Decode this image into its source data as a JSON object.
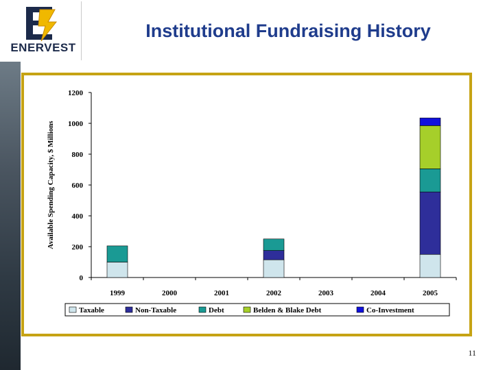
{
  "slide": {
    "title": "Institutional Fundraising History",
    "logo_text": "ENERVEST",
    "page_number": "11"
  },
  "colors": {
    "title": "#1f3c8c",
    "frame": "#c6a314",
    "taxable": "#cfe5ec",
    "non_taxable": "#2e2e9a",
    "debt": "#1a9a94",
    "belden_blake_debt": "#a6cf2a",
    "co_investment": "#1010dd"
  },
  "chart_data": {
    "type": "bar",
    "stacked": true,
    "ylabel": "Available Spending Capacity, $ Millions",
    "xlabel": "",
    "ylim": [
      0,
      1200
    ],
    "yticks": [
      0,
      200,
      400,
      600,
      800,
      1000,
      1200
    ],
    "grid": false,
    "legend_position": "bottom",
    "categories": [
      "1999",
      "2000",
      "2001",
      "2002",
      "2003",
      "2004",
      "2005"
    ],
    "series": [
      {
        "name": "Taxable",
        "color": "#cfe5ec",
        "values": [
          100,
          0,
          0,
          115,
          0,
          0,
          150
        ]
      },
      {
        "name": "Non-Taxable",
        "color": "#2e2e9a",
        "values": [
          0,
          0,
          0,
          60,
          0,
          0,
          405
        ]
      },
      {
        "name": "Debt",
        "color": "#1a9a94",
        "values": [
          105,
          0,
          0,
          75,
          0,
          0,
          150
        ]
      },
      {
        "name": "Belden & Blake Debt",
        "color": "#a6cf2a",
        "values": [
          0,
          0,
          0,
          0,
          0,
          0,
          280
        ]
      },
      {
        "name": "Co-Investment",
        "color": "#1010dd",
        "values": [
          0,
          0,
          0,
          0,
          0,
          0,
          50
        ]
      }
    ]
  }
}
